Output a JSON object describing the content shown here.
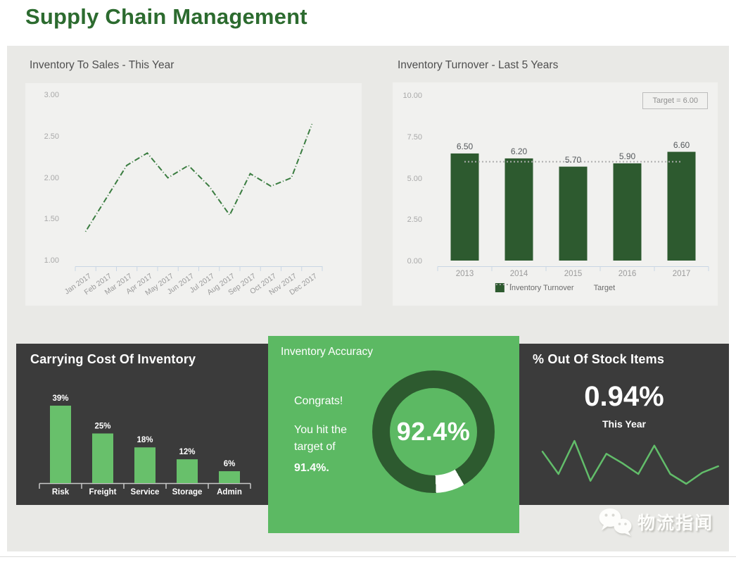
{
  "page_title": "Supply Chain Management",
  "colors": {
    "title_green": "#2c6b2f",
    "dark_green": "#2d5a2f",
    "light_green": "#68c06b",
    "card_green": "#5cb963",
    "spark_green": "#62bd6a",
    "panel_gray": "#e9e9e6",
    "plot_gray": "#f1f1ef",
    "dark_panel": "#3b3b3b",
    "axis_blue": "#c9d6e4",
    "tick_text": "#9b9b9b"
  },
  "watermark": {
    "text": "物流指闻",
    "icon": "wechat-icon"
  },
  "chart_data": [
    {
      "type": "line",
      "title": "Inventory To Sales - This Year",
      "x": [
        "Jan 2017",
        "Feb 2017",
        "Mar 2017",
        "Apr 2017",
        "May 2017",
        "Jun 2017",
        "Jul 2017",
        "Aug 2017",
        "Sep 2017",
        "Oct 2017",
        "Nov 2017",
        "Dec 2017"
      ],
      "values": [
        1.35,
        1.75,
        2.15,
        2.3,
        2.0,
        2.15,
        1.9,
        1.55,
        2.05,
        1.9,
        2.0,
        2.65
      ],
      "ylim": [
        1.0,
        3.0
      ],
      "y_ticks": [
        "3.00",
        "2.50",
        "2.00",
        "1.50",
        "1.00"
      ],
      "line_style": "dash-dot",
      "grid": false,
      "legend_position": "none"
    },
    {
      "type": "bar",
      "title": "Inventory Turnover - Last 5 Years",
      "categories": [
        "2013",
        "2014",
        "2015",
        "2016",
        "2017"
      ],
      "values": [
        6.5,
        6.2,
        5.7,
        5.9,
        6.6
      ],
      "value_labels": [
        "6.50",
        "6.20",
        "5.70",
        "5.90",
        "6.60"
      ],
      "target": 6.0,
      "target_label": "Target = 6.00",
      "ylim": [
        0,
        10
      ],
      "y_ticks": [
        "10.00",
        "7.50",
        "5.00",
        "2.50",
        "0.00"
      ],
      "legend": [
        "Inventory Turnover",
        "Target"
      ],
      "legend_position": "bottom",
      "grid": false
    },
    {
      "type": "bar",
      "title": "Carrying Cost Of Inventory",
      "categories": [
        "Risk",
        "Freight",
        "Service",
        "Storage",
        "Admin"
      ],
      "values": [
        39,
        25,
        18,
        12,
        6
      ],
      "value_labels": [
        "39%",
        "25%",
        "18%",
        "12%",
        "6%"
      ],
      "ylim": [
        0,
        45
      ],
      "grid": false
    },
    {
      "type": "donut",
      "title": "Inventory Accuracy",
      "value": 92.4,
      "value_label": "92.4%",
      "target": 91.4,
      "messages": [
        "Congrats!",
        "You hit the",
        "target of",
        "91.4%."
      ]
    },
    {
      "type": "line",
      "title": "% Out Of Stock Items",
      "value_label": "0.94%",
      "period": "This Year",
      "spark_values": [
        75,
        23,
        100,
        7,
        70,
        48,
        23,
        89,
        23,
        0,
        26,
        41
      ]
    }
  ]
}
